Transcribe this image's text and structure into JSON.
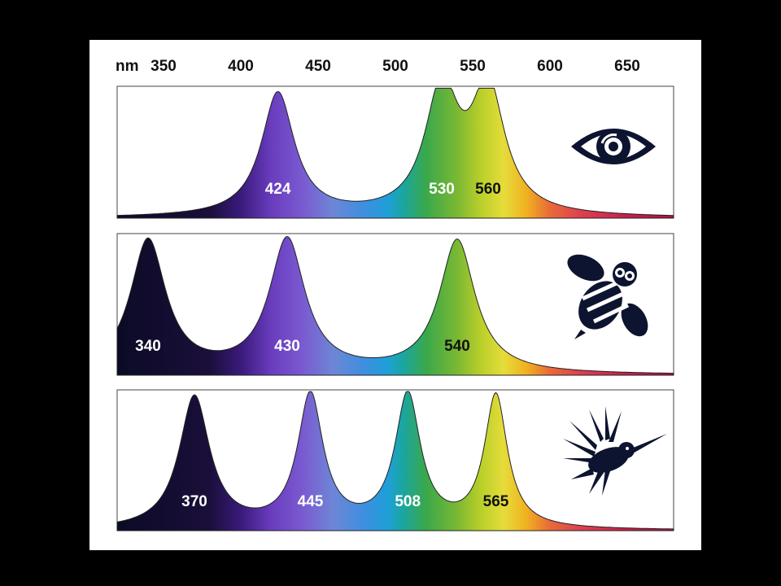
{
  "chart_data": {
    "type": "area",
    "x_unit": "nm",
    "x_ticks": [
      350,
      400,
      450,
      500,
      550,
      600,
      650
    ],
    "xlim": [
      320,
      680
    ],
    "panels": [
      {
        "organism": "human",
        "icon": "eye-icon",
        "peaks": [
          {
            "wavelength": 424,
            "label": "424",
            "height": 1.0,
            "width": 13,
            "label_color": "#ffffff"
          },
          {
            "wavelength": 530,
            "label": "530",
            "height": 1.0,
            "width": 13,
            "label_color": "#ffffff"
          },
          {
            "wavelength": 560,
            "label": "560",
            "height": 1.0,
            "width": 13,
            "label_color": "#111111"
          }
        ]
      },
      {
        "organism": "bee",
        "icon": "bee-icon",
        "peaks": [
          {
            "wavelength": 340,
            "label": "340",
            "height": 1.0,
            "width": 14,
            "label_color": "#ffffff"
          },
          {
            "wavelength": 430,
            "label": "430",
            "height": 1.0,
            "width": 14,
            "label_color": "#ffffff"
          },
          {
            "wavelength": 540,
            "label": "540",
            "height": 1.0,
            "width": 14,
            "label_color": "#111111"
          }
        ]
      },
      {
        "organism": "hummingbird",
        "icon": "hummingbird-icon",
        "peaks": [
          {
            "wavelength": 370,
            "label": "370",
            "height": 1.0,
            "width": 12,
            "label_color": "#ffffff"
          },
          {
            "wavelength": 445,
            "label": "445",
            "height": 1.0,
            "width": 10,
            "label_color": "#ffffff"
          },
          {
            "wavelength": 508,
            "label": "508",
            "height": 1.0,
            "width": 10,
            "label_color": "#ffffff"
          },
          {
            "wavelength": 565,
            "label": "565",
            "height": 1.0,
            "width": 9,
            "label_color": "#111111"
          }
        ]
      }
    ],
    "spectrum_colors": [
      {
        "nm": 320,
        "color": "#0b0b26"
      },
      {
        "nm": 380,
        "color": "#1a0f3a"
      },
      {
        "nm": 400,
        "color": "#3a1a7a"
      },
      {
        "nm": 420,
        "color": "#6a3dbf"
      },
      {
        "nm": 440,
        "color": "#7a5ad0"
      },
      {
        "nm": 460,
        "color": "#6d86d6"
      },
      {
        "nm": 480,
        "color": "#3d8fe0"
      },
      {
        "nm": 495,
        "color": "#1f9fd8"
      },
      {
        "nm": 505,
        "color": "#1aa6a0"
      },
      {
        "nm": 520,
        "color": "#3aa84a"
      },
      {
        "nm": 540,
        "color": "#7ab833"
      },
      {
        "nm": 555,
        "color": "#b8cf2a"
      },
      {
        "nm": 570,
        "color": "#e6dc3a"
      },
      {
        "nm": 585,
        "color": "#f0b020"
      },
      {
        "nm": 600,
        "color": "#e86a3a"
      },
      {
        "nm": 620,
        "color": "#dd4050"
      },
      {
        "nm": 650,
        "color": "#c8204a"
      },
      {
        "nm": 680,
        "color": "#b01040"
      }
    ]
  }
}
